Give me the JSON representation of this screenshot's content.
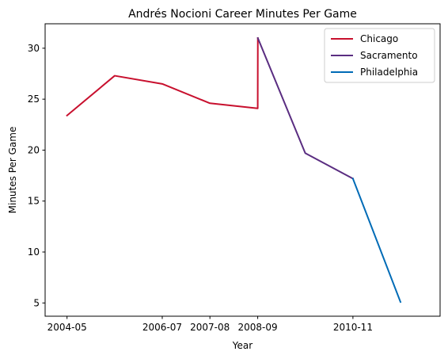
{
  "chart_data": {
    "type": "line",
    "title": "Andrés Nocioni Career Minutes Per Game",
    "xlabel": "Year",
    "ylabel": "Minutes Per Game",
    "x_type": "date",
    "xlim": [
      "2003-11-01",
      "2012-10-25"
    ],
    "ylim": [
      3.7,
      32.4
    ],
    "x_ticks": [
      "2004-05",
      "2006-07",
      "2007-08",
      "2008-09",
      "2010-11"
    ],
    "y_ticks": [
      5,
      10,
      15,
      20,
      25,
      30
    ],
    "grid": false,
    "legend_position": "top-right",
    "series": [
      {
        "name": "Chicago",
        "color": "#c8102e",
        "points": [
          {
            "x": "2004-05-01",
            "y": 23.4
          },
          {
            "x": "2005-06-01",
            "y": 27.3
          },
          {
            "x": "2006-07-01",
            "y": 26.5
          },
          {
            "x": "2007-08-01",
            "y": 24.6
          },
          {
            "x": "2008-09-01",
            "y": 24.1
          },
          {
            "x": "2008-09-02",
            "y": 31.0
          }
        ]
      },
      {
        "name": "Sacramento",
        "color": "#5a2d81",
        "points": [
          {
            "x": "2008-09-02",
            "y": 31.0
          },
          {
            "x": "2009-10-01",
            "y": 19.7
          },
          {
            "x": "2010-11-01",
            "y": 17.2
          }
        ]
      },
      {
        "name": "Philadelphia",
        "color": "#006bb6",
        "points": [
          {
            "x": "2010-11-01",
            "y": 17.2
          },
          {
            "x": "2011-12-01",
            "y": 5.1
          }
        ]
      }
    ]
  }
}
